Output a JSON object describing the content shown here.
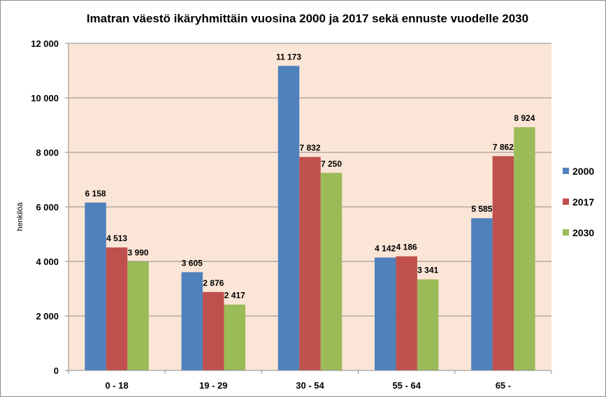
{
  "chart_data": {
    "type": "bar",
    "title": "Imatran väestö ikäryhmittäin vuosina 2000 ja 2017 sekä ennuste vuodelle 2030",
    "xlabel": "",
    "ylabel": "henkilöä",
    "ylim": [
      0,
      12000
    ],
    "ytick_values": [
      0,
      2000,
      4000,
      6000,
      8000,
      10000,
      12000
    ],
    "ytick_labels": [
      "0",
      "2 000",
      "4 000",
      "6 000",
      "8 000",
      "10 000",
      "12 000"
    ],
    "categories": [
      "0 - 18",
      "19 - 29",
      "30 - 54",
      "55 - 64",
      "65 -"
    ],
    "series": [
      {
        "name": "2000",
        "color": "#4f81bd",
        "values": [
          6158,
          3605,
          11173,
          4142,
          5585
        ],
        "labels": [
          "6 158",
          "3 605",
          "11 173",
          "4 142",
          "5 585"
        ]
      },
      {
        "name": "2017",
        "color": "#c0504d",
        "values": [
          4513,
          2876,
          7832,
          4186,
          7862
        ],
        "labels": [
          "4 513",
          "2 876",
          "7 832",
          "4 186",
          "7 862"
        ]
      },
      {
        "name": "2030",
        "color": "#9bbb59",
        "values": [
          3990,
          2417,
          7250,
          3341,
          8924
        ],
        "labels": [
          "3 990",
          "2 417",
          "7 250",
          "3 341",
          "8 924"
        ]
      }
    ],
    "plot_background": "#fbe5d6",
    "grid": true,
    "legend_position": "right"
  }
}
